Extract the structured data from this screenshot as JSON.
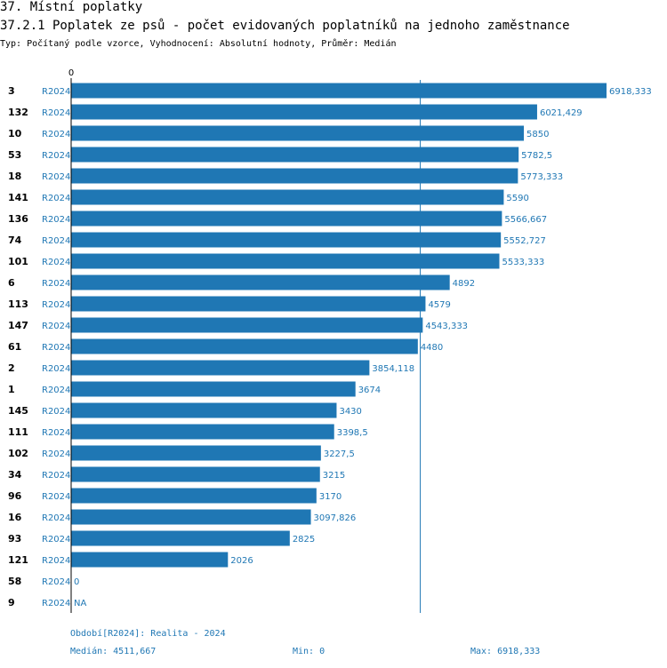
{
  "header": {
    "section": "37. Místní poplatky",
    "title": "37.2.1 Poplatek ze psů - počet evidovaných poplatníků na jednoho zaměstnance",
    "subtitle": "Typ: Počítaný podle vzorce, Vyhodnocení: Absolutní hodnoty, Průměr: Medián"
  },
  "chart_data": {
    "type": "bar",
    "orientation": "horizontal",
    "title": "37.2.1 Poplatek ze psů - počet evidovaných poplatníků na jednoho zaměstnance",
    "series_name": "R2024",
    "x_tick": "0",
    "xlim": [
      0,
      6918.333
    ],
    "median": 4511.667,
    "rows": [
      {
        "id": "3",
        "series": "R2024",
        "value": 6918.333,
        "label": "6918,333"
      },
      {
        "id": "132",
        "series": "R2024",
        "value": 6021.429,
        "label": "6021,429"
      },
      {
        "id": "10",
        "series": "R2024",
        "value": 5850,
        "label": "5850"
      },
      {
        "id": "53",
        "series": "R2024",
        "value": 5782.5,
        "label": "5782,5"
      },
      {
        "id": "18",
        "series": "R2024",
        "value": 5773.333,
        "label": "5773,333"
      },
      {
        "id": "141",
        "series": "R2024",
        "value": 5590,
        "label": "5590"
      },
      {
        "id": "136",
        "series": "R2024",
        "value": 5566.667,
        "label": "5566,667"
      },
      {
        "id": "74",
        "series": "R2024",
        "value": 5552.727,
        "label": "5552,727"
      },
      {
        "id": "101",
        "series": "R2024",
        "value": 5533.333,
        "label": "5533,333"
      },
      {
        "id": "6",
        "series": "R2024",
        "value": 4892,
        "label": "4892"
      },
      {
        "id": "113",
        "series": "R2024",
        "value": 4579,
        "label": "4579"
      },
      {
        "id": "147",
        "series": "R2024",
        "value": 4543.333,
        "label": "4543,333"
      },
      {
        "id": "61",
        "series": "R2024",
        "value": 4480,
        "label": "4480"
      },
      {
        "id": "2",
        "series": "R2024",
        "value": 3854.118,
        "label": "3854,118"
      },
      {
        "id": "1",
        "series": "R2024",
        "value": 3674,
        "label": "3674"
      },
      {
        "id": "145",
        "series": "R2024",
        "value": 3430,
        "label": "3430"
      },
      {
        "id": "111",
        "series": "R2024",
        "value": 3398.5,
        "label": "3398,5"
      },
      {
        "id": "102",
        "series": "R2024",
        "value": 3227.5,
        "label": "3227,5"
      },
      {
        "id": "34",
        "series": "R2024",
        "value": 3215,
        "label": "3215"
      },
      {
        "id": "96",
        "series": "R2024",
        "value": 3170,
        "label": "3170"
      },
      {
        "id": "16",
        "series": "R2024",
        "value": 3097.826,
        "label": "3097,826"
      },
      {
        "id": "93",
        "series": "R2024",
        "value": 2825,
        "label": "2825"
      },
      {
        "id": "121",
        "series": "R2024",
        "value": 2026,
        "label": "2026"
      },
      {
        "id": "58",
        "series": "R2024",
        "value": 0,
        "label": "0"
      },
      {
        "id": "9",
        "series": "R2024",
        "value": null,
        "label": "NA"
      }
    ]
  },
  "footer": {
    "period": "Období[R2024]: Realita - 2024",
    "median": "Medián: 4511,667",
    "min": "Min: 0",
    "max": "Max: 6918,333"
  },
  "colors": {
    "bar": "#1f77b4",
    "label": "#1f77b4",
    "axis": "#000000"
  }
}
